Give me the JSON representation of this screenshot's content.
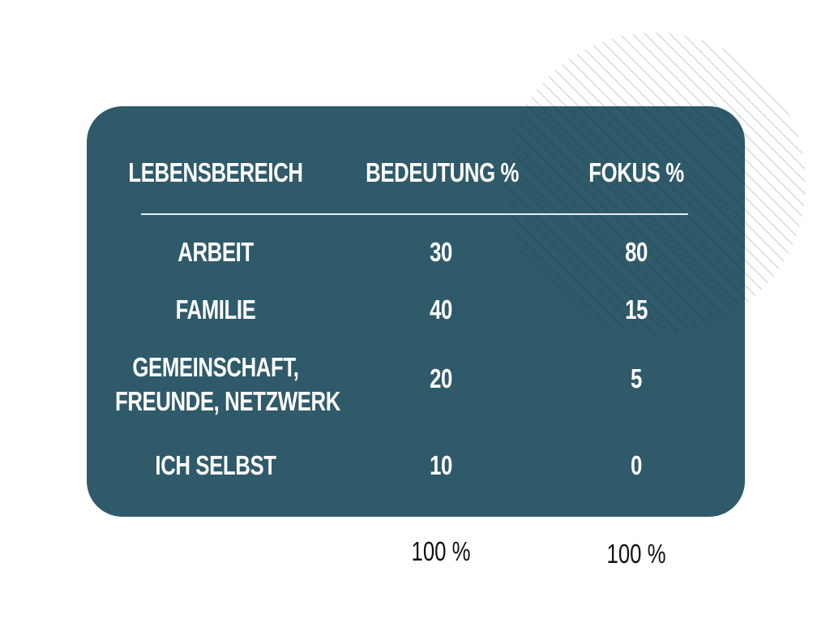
{
  "table": {
    "headers": {
      "area": "LEBENSBEREICH",
      "importance": "BEDEUTUNG %",
      "focus": "FOKUS %"
    },
    "rows": [
      {
        "area_lines": [
          "ARBEIT"
        ],
        "importance": "30",
        "focus": "80"
      },
      {
        "area_lines": [
          "FAMILIE"
        ],
        "importance": "40",
        "focus": "15"
      },
      {
        "area_lines": [
          "GEMEINSCHAFT,",
          "FREUNDE, NETZWERK"
        ],
        "importance": "20",
        "focus": "5"
      },
      {
        "area_lines": [
          "ICH SELBST"
        ],
        "importance": "10",
        "focus": "0"
      }
    ]
  },
  "totals": {
    "importance": "100 %",
    "focus": "100 %"
  },
  "colors": {
    "card_background": "#2f5a6a",
    "card_text": "#ffffff",
    "decoration_stripes": "#c9d3d8",
    "total_text": "#111111"
  }
}
